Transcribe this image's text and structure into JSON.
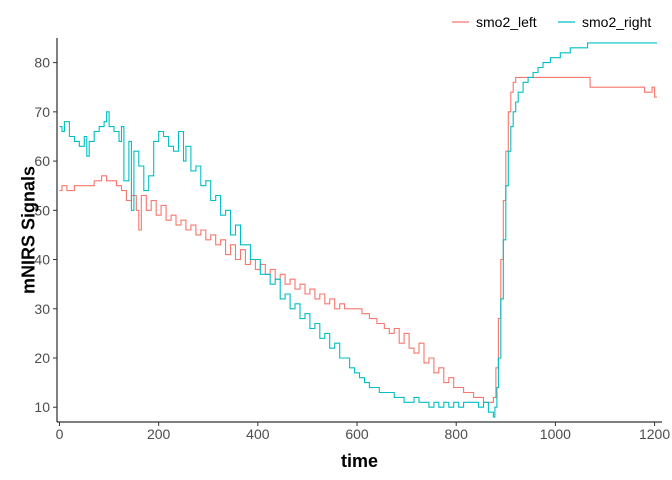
{
  "chart_data": {
    "type": "line",
    "title": "",
    "xlabel": "time",
    "ylabel": "mNIRS Signals",
    "xlim": [
      -5,
      1215
    ],
    "ylim": [
      7,
      85
    ],
    "xticks": [
      0,
      200,
      400,
      600,
      800,
      1000,
      1200
    ],
    "yticks": [
      10,
      20,
      30,
      40,
      50,
      60,
      70,
      80
    ],
    "grid": false,
    "legend": "top-right",
    "series": [
      {
        "name": "smo2_left",
        "color": "#F8766D",
        "x": [
          0,
          5,
          15,
          30,
          50,
          70,
          85,
          95,
          105,
          115,
          125,
          135,
          145,
          155,
          160,
          165,
          175,
          185,
          195,
          205,
          215,
          225,
          235,
          245,
          255,
          265,
          275,
          285,
          295,
          305,
          315,
          325,
          335,
          345,
          355,
          365,
          375,
          385,
          395,
          405,
          415,
          425,
          435,
          445,
          455,
          465,
          475,
          485,
          495,
          505,
          515,
          525,
          535,
          545,
          555,
          565,
          575,
          585,
          595,
          610,
          625,
          640,
          655,
          665,
          675,
          685,
          695,
          705,
          715,
          725,
          735,
          745,
          755,
          765,
          775,
          785,
          795,
          805,
          815,
          825,
          835,
          845,
          855,
          865,
          875,
          880,
          885,
          890,
          895,
          900,
          905,
          910,
          915,
          920,
          925,
          930,
          940,
          950,
          1000,
          1050,
          1070,
          1100,
          1150,
          1180,
          1190,
          1195,
          1200,
          1205
        ],
        "values": [
          54,
          55,
          54,
          55,
          55,
          56,
          57,
          56,
          56,
          55,
          54,
          52,
          53,
          50,
          46,
          53,
          50,
          52,
          49,
          51,
          48,
          49,
          47,
          48,
          46,
          47,
          45,
          46,
          44,
          45,
          43,
          44,
          41,
          43,
          40,
          42,
          39,
          40,
          38,
          39,
          37,
          38,
          36,
          37,
          35,
          36,
          34,
          35,
          33,
          34,
          32,
          33,
          31,
          32,
          30,
          31,
          30,
          30,
          30,
          29,
          28,
          27,
          26,
          25,
          26,
          23,
          25,
          22,
          21,
          23,
          19,
          20,
          17,
          18,
          15,
          16,
          14,
          14,
          13,
          13,
          12,
          12,
          11,
          11,
          12,
          18,
          28,
          40,
          52,
          62,
          70,
          74,
          76,
          77,
          77,
          77,
          77,
          77,
          77,
          77,
          75,
          75,
          75,
          74,
          74,
          75,
          73,
          73
        ]
      },
      {
        "name": "smo2_right",
        "color": "#00BFC4",
        "x": [
          0,
          5,
          10,
          20,
          30,
          40,
          50,
          55,
          60,
          70,
          80,
          90,
          95,
          100,
          110,
          120,
          125,
          130,
          140,
          145,
          150,
          160,
          170,
          180,
          190,
          200,
          210,
          220,
          230,
          240,
          250,
          255,
          265,
          275,
          285,
          295,
          305,
          315,
          325,
          335,
          345,
          355,
          365,
          375,
          385,
          395,
          405,
          415,
          425,
          435,
          445,
          455,
          465,
          475,
          485,
          495,
          505,
          515,
          525,
          535,
          545,
          555,
          565,
          575,
          585,
          595,
          605,
          615,
          625,
          635,
          645,
          655,
          665,
          675,
          685,
          695,
          705,
          715,
          725,
          735,
          745,
          755,
          765,
          775,
          785,
          795,
          805,
          815,
          825,
          835,
          845,
          855,
          865,
          875,
          878,
          882,
          885,
          890,
          895,
          900,
          905,
          910,
          915,
          920,
          925,
          935,
          945,
          955,
          965,
          975,
          990,
          1010,
          1030,
          1050,
          1065,
          1100,
          1150,
          1205
        ],
        "values": [
          67,
          66,
          68,
          65,
          64,
          63,
          65,
          61,
          64,
          66,
          67,
          68,
          70,
          67,
          66,
          64,
          67,
          56,
          64,
          50,
          62,
          59,
          54,
          57,
          64,
          66,
          65,
          63,
          62,
          66,
          60,
          63,
          58,
          59,
          55,
          56,
          52,
          53,
          49,
          50,
          45,
          47,
          43,
          43,
          40,
          40,
          37,
          37,
          35,
          36,
          32,
          33,
          30,
          31,
          28,
          29,
          26,
          27,
          24,
          25,
          22,
          23,
          20,
          20,
          18,
          17,
          16,
          15,
          14,
          14,
          13,
          13,
          13,
          12,
          12,
          11,
          11,
          12,
          11,
          11,
          10,
          11,
          10,
          11,
          10,
          11,
          10,
          11,
          11,
          11,
          10,
          11,
          9,
          8,
          10,
          14,
          20,
          32,
          44,
          55,
          62,
          67,
          70,
          72,
          74,
          76,
          77,
          78,
          79,
          80,
          81,
          82,
          83,
          83,
          84,
          84,
          84,
          84
        ]
      }
    ]
  }
}
